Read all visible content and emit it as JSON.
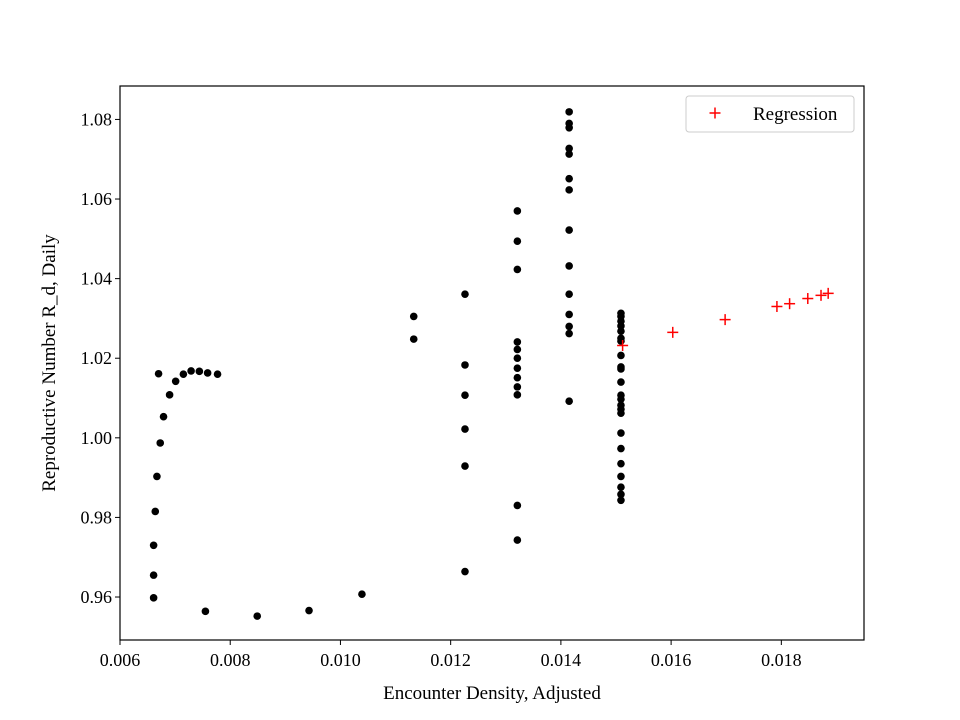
{
  "chart_data": {
    "type": "scatter",
    "title": "",
    "xlabel": "Encounter Density, Adjusted",
    "ylabel": "Reproductive Number R_d, Daily",
    "xlim": [
      0.006,
      0.0195
    ],
    "ylim": [
      0.9492,
      1.0884
    ],
    "x_ticks": [
      0.006,
      0.008,
      0.01,
      0.012,
      0.014,
      0.016,
      0.018
    ],
    "x_tick_labels": [
      "0.006",
      "0.008",
      "0.010",
      "0.012",
      "0.014",
      "0.016",
      "0.018"
    ],
    "y_ticks": [
      0.96,
      0.98,
      1.0,
      1.02,
      1.04,
      1.06,
      1.08
    ],
    "y_tick_labels": [
      "0.96",
      "0.98",
      "1.00",
      "1.02",
      "1.04",
      "1.06",
      "1.08"
    ],
    "grid": false,
    "legend_position": "top-right",
    "series": [
      {
        "marker": "dot",
        "color": "#000000",
        "points": [
          [
            0.00661,
            0.9598
          ],
          [
            0.00661,
            0.9655
          ],
          [
            0.00661,
            0.973
          ],
          [
            0.00664,
            0.9815
          ],
          [
            0.00667,
            0.9903
          ],
          [
            0.00673,
            0.9987
          ],
          [
            0.00679,
            1.0053
          ],
          [
            0.0067,
            1.0161
          ],
          [
            0.0069,
            1.0108
          ],
          [
            0.00701,
            1.0142
          ],
          [
            0.00715,
            1.016
          ],
          [
            0.00729,
            1.0168
          ],
          [
            0.00744,
            1.0167
          ],
          [
            0.00759,
            1.0163
          ],
          [
            0.00777,
            1.016
          ],
          [
            0.00755,
            0.9564
          ],
          [
            0.00849,
            0.9552
          ],
          [
            0.00943,
            0.9566
          ],
          [
            0.01039,
            0.9607
          ],
          [
            0.01133,
            1.0248
          ],
          [
            0.01133,
            1.0305
          ],
          [
            0.01226,
            0.9664
          ],
          [
            0.01226,
            0.9929
          ],
          [
            0.01226,
            1.0022
          ],
          [
            0.01226,
            1.0107
          ],
          [
            0.01226,
            1.0183
          ],
          [
            0.01226,
            1.0361
          ],
          [
            0.01321,
            0.9743
          ],
          [
            0.01321,
            0.983
          ],
          [
            0.01321,
            1.0108
          ],
          [
            0.01321,
            1.0128
          ],
          [
            0.01321,
            1.0151
          ],
          [
            0.01321,
            1.0175
          ],
          [
            0.01321,
            1.02
          ],
          [
            0.01321,
            1.0222
          ],
          [
            0.01321,
            1.0241
          ],
          [
            0.01321,
            1.0423
          ],
          [
            0.01321,
            1.0494
          ],
          [
            0.01321,
            1.057
          ],
          [
            0.01415,
            1.0092
          ],
          [
            0.01415,
            1.0262
          ],
          [
            0.01415,
            1.028
          ],
          [
            0.01415,
            1.031
          ],
          [
            0.01415,
            1.0361
          ],
          [
            0.01415,
            1.0432
          ],
          [
            0.01415,
            1.0522
          ],
          [
            0.01415,
            1.0623
          ],
          [
            0.01415,
            1.0651
          ],
          [
            0.01415,
            1.0713
          ],
          [
            0.01415,
            1.0727
          ],
          [
            0.01415,
            1.0779
          ],
          [
            0.01415,
            1.079
          ],
          [
            0.01415,
            1.0819
          ],
          [
            0.01509,
            0.9843
          ],
          [
            0.01509,
            0.9858
          ],
          [
            0.01509,
            0.9876
          ],
          [
            0.01509,
            0.9903
          ],
          [
            0.01509,
            0.9935
          ],
          [
            0.01509,
            0.9973
          ],
          [
            0.01509,
            1.0012
          ],
          [
            0.01509,
            1.0062
          ],
          [
            0.01509,
            1.0072
          ],
          [
            0.01509,
            1.0082
          ],
          [
            0.01509,
            1.0097
          ],
          [
            0.01509,
            1.0107
          ],
          [
            0.01509,
            1.014
          ],
          [
            0.01509,
            1.0173
          ],
          [
            0.01509,
            1.0178
          ],
          [
            0.01509,
            1.0207
          ],
          [
            0.01509,
            1.0243
          ],
          [
            0.01509,
            1.025
          ],
          [
            0.01509,
            1.0268
          ],
          [
            0.01509,
            1.0281
          ],
          [
            0.01509,
            1.0293
          ],
          [
            0.01509,
            1.0305
          ],
          [
            0.01509,
            1.0313
          ]
        ]
      },
      {
        "name": "Regression",
        "marker": "plus",
        "color": "#ff0000",
        "points": [
          [
            0.01512,
            1.0232
          ],
          [
            0.01603,
            1.0265
          ],
          [
            0.01698,
            1.0297
          ],
          [
            0.01792,
            1.033
          ],
          [
            0.01815,
            1.0337
          ],
          [
            0.01848,
            1.035
          ],
          [
            0.01872,
            1.0358
          ],
          [
            0.01885,
            1.0363
          ]
        ]
      }
    ]
  }
}
